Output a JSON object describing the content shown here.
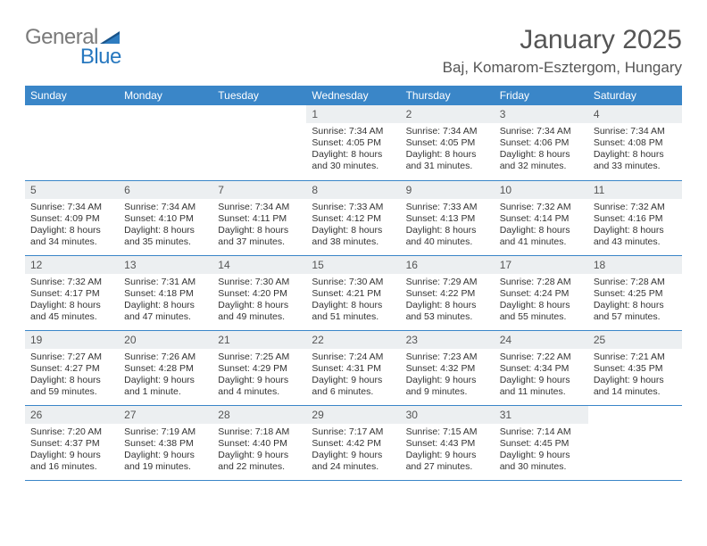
{
  "logo": {
    "general": "General",
    "blue": "Blue"
  },
  "title": "January 2025",
  "location": "Baj, Komarom-Esztergom, Hungary",
  "colors": {
    "header_bg": "#3a86c8",
    "header_text": "#ffffff",
    "daynum_bg": "#eceff1",
    "text": "#333333",
    "title_text": "#555555",
    "row_border": "#3a86c8",
    "logo_gray": "#7a7a7a",
    "logo_blue": "#2778bf"
  },
  "day_headers": [
    "Sunday",
    "Monday",
    "Tuesday",
    "Wednesday",
    "Thursday",
    "Friday",
    "Saturday"
  ],
  "weeks": [
    [
      {
        "n": "",
        "lines": []
      },
      {
        "n": "",
        "lines": []
      },
      {
        "n": "",
        "lines": []
      },
      {
        "n": "1",
        "lines": [
          "Sunrise: 7:34 AM",
          "Sunset: 4:05 PM",
          "Daylight: 8 hours",
          "and 30 minutes."
        ]
      },
      {
        "n": "2",
        "lines": [
          "Sunrise: 7:34 AM",
          "Sunset: 4:05 PM",
          "Daylight: 8 hours",
          "and 31 minutes."
        ]
      },
      {
        "n": "3",
        "lines": [
          "Sunrise: 7:34 AM",
          "Sunset: 4:06 PM",
          "Daylight: 8 hours",
          "and 32 minutes."
        ]
      },
      {
        "n": "4",
        "lines": [
          "Sunrise: 7:34 AM",
          "Sunset: 4:08 PM",
          "Daylight: 8 hours",
          "and 33 minutes."
        ]
      }
    ],
    [
      {
        "n": "5",
        "lines": [
          "Sunrise: 7:34 AM",
          "Sunset: 4:09 PM",
          "Daylight: 8 hours",
          "and 34 minutes."
        ]
      },
      {
        "n": "6",
        "lines": [
          "Sunrise: 7:34 AM",
          "Sunset: 4:10 PM",
          "Daylight: 8 hours",
          "and 35 minutes."
        ]
      },
      {
        "n": "7",
        "lines": [
          "Sunrise: 7:34 AM",
          "Sunset: 4:11 PM",
          "Daylight: 8 hours",
          "and 37 minutes."
        ]
      },
      {
        "n": "8",
        "lines": [
          "Sunrise: 7:33 AM",
          "Sunset: 4:12 PM",
          "Daylight: 8 hours",
          "and 38 minutes."
        ]
      },
      {
        "n": "9",
        "lines": [
          "Sunrise: 7:33 AM",
          "Sunset: 4:13 PM",
          "Daylight: 8 hours",
          "and 40 minutes."
        ]
      },
      {
        "n": "10",
        "lines": [
          "Sunrise: 7:32 AM",
          "Sunset: 4:14 PM",
          "Daylight: 8 hours",
          "and 41 minutes."
        ]
      },
      {
        "n": "11",
        "lines": [
          "Sunrise: 7:32 AM",
          "Sunset: 4:16 PM",
          "Daylight: 8 hours",
          "and 43 minutes."
        ]
      }
    ],
    [
      {
        "n": "12",
        "lines": [
          "Sunrise: 7:32 AM",
          "Sunset: 4:17 PM",
          "Daylight: 8 hours",
          "and 45 minutes."
        ]
      },
      {
        "n": "13",
        "lines": [
          "Sunrise: 7:31 AM",
          "Sunset: 4:18 PM",
          "Daylight: 8 hours",
          "and 47 minutes."
        ]
      },
      {
        "n": "14",
        "lines": [
          "Sunrise: 7:30 AM",
          "Sunset: 4:20 PM",
          "Daylight: 8 hours",
          "and 49 minutes."
        ]
      },
      {
        "n": "15",
        "lines": [
          "Sunrise: 7:30 AM",
          "Sunset: 4:21 PM",
          "Daylight: 8 hours",
          "and 51 minutes."
        ]
      },
      {
        "n": "16",
        "lines": [
          "Sunrise: 7:29 AM",
          "Sunset: 4:22 PM",
          "Daylight: 8 hours",
          "and 53 minutes."
        ]
      },
      {
        "n": "17",
        "lines": [
          "Sunrise: 7:28 AM",
          "Sunset: 4:24 PM",
          "Daylight: 8 hours",
          "and 55 minutes."
        ]
      },
      {
        "n": "18",
        "lines": [
          "Sunrise: 7:28 AM",
          "Sunset: 4:25 PM",
          "Daylight: 8 hours",
          "and 57 minutes."
        ]
      }
    ],
    [
      {
        "n": "19",
        "lines": [
          "Sunrise: 7:27 AM",
          "Sunset: 4:27 PM",
          "Daylight: 8 hours",
          "and 59 minutes."
        ]
      },
      {
        "n": "20",
        "lines": [
          "Sunrise: 7:26 AM",
          "Sunset: 4:28 PM",
          "Daylight: 9 hours",
          "and 1 minute."
        ]
      },
      {
        "n": "21",
        "lines": [
          "Sunrise: 7:25 AM",
          "Sunset: 4:29 PM",
          "Daylight: 9 hours",
          "and 4 minutes."
        ]
      },
      {
        "n": "22",
        "lines": [
          "Sunrise: 7:24 AM",
          "Sunset: 4:31 PM",
          "Daylight: 9 hours",
          "and 6 minutes."
        ]
      },
      {
        "n": "23",
        "lines": [
          "Sunrise: 7:23 AM",
          "Sunset: 4:32 PM",
          "Daylight: 9 hours",
          "and 9 minutes."
        ]
      },
      {
        "n": "24",
        "lines": [
          "Sunrise: 7:22 AM",
          "Sunset: 4:34 PM",
          "Daylight: 9 hours",
          "and 11 minutes."
        ]
      },
      {
        "n": "25",
        "lines": [
          "Sunrise: 7:21 AM",
          "Sunset: 4:35 PM",
          "Daylight: 9 hours",
          "and 14 minutes."
        ]
      }
    ],
    [
      {
        "n": "26",
        "lines": [
          "Sunrise: 7:20 AM",
          "Sunset: 4:37 PM",
          "Daylight: 9 hours",
          "and 16 minutes."
        ]
      },
      {
        "n": "27",
        "lines": [
          "Sunrise: 7:19 AM",
          "Sunset: 4:38 PM",
          "Daylight: 9 hours",
          "and 19 minutes."
        ]
      },
      {
        "n": "28",
        "lines": [
          "Sunrise: 7:18 AM",
          "Sunset: 4:40 PM",
          "Daylight: 9 hours",
          "and 22 minutes."
        ]
      },
      {
        "n": "29",
        "lines": [
          "Sunrise: 7:17 AM",
          "Sunset: 4:42 PM",
          "Daylight: 9 hours",
          "and 24 minutes."
        ]
      },
      {
        "n": "30",
        "lines": [
          "Sunrise: 7:15 AM",
          "Sunset: 4:43 PM",
          "Daylight: 9 hours",
          "and 27 minutes."
        ]
      },
      {
        "n": "31",
        "lines": [
          "Sunrise: 7:14 AM",
          "Sunset: 4:45 PM",
          "Daylight: 9 hours",
          "and 30 minutes."
        ]
      },
      {
        "n": "",
        "lines": []
      }
    ]
  ]
}
